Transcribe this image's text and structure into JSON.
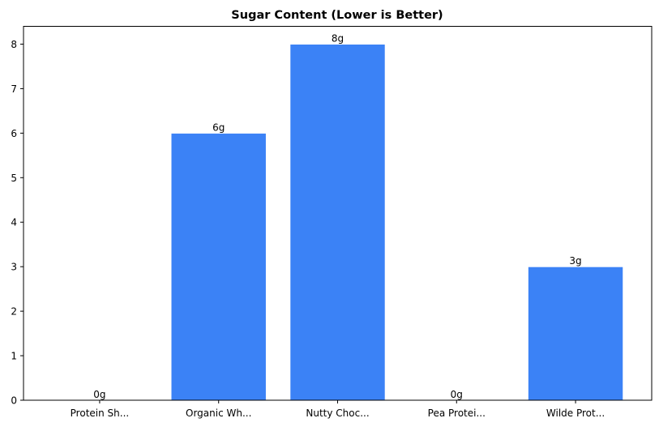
{
  "chart_data": {
    "type": "bar",
    "title": "Sugar Content (Lower is Better)",
    "xlabel": "",
    "ylabel": "",
    "categories": [
      "Protein Sh...",
      "Organic Wh...",
      "Nutty Choc...",
      "Pea Protei...",
      "Wilde Prot..."
    ],
    "values": [
      0,
      6,
      8,
      0,
      3
    ],
    "data_labels": [
      "0g",
      "6g",
      "8g",
      "0g",
      "3g"
    ],
    "ylim": [
      0,
      8.4
    ],
    "yticks": [
      "0",
      "1",
      "2",
      "3",
      "4",
      "5",
      "6",
      "7",
      "8"
    ],
    "grid": false,
    "bar_color": "#3b82f6",
    "bar_edge_color": "#ffffff"
  }
}
